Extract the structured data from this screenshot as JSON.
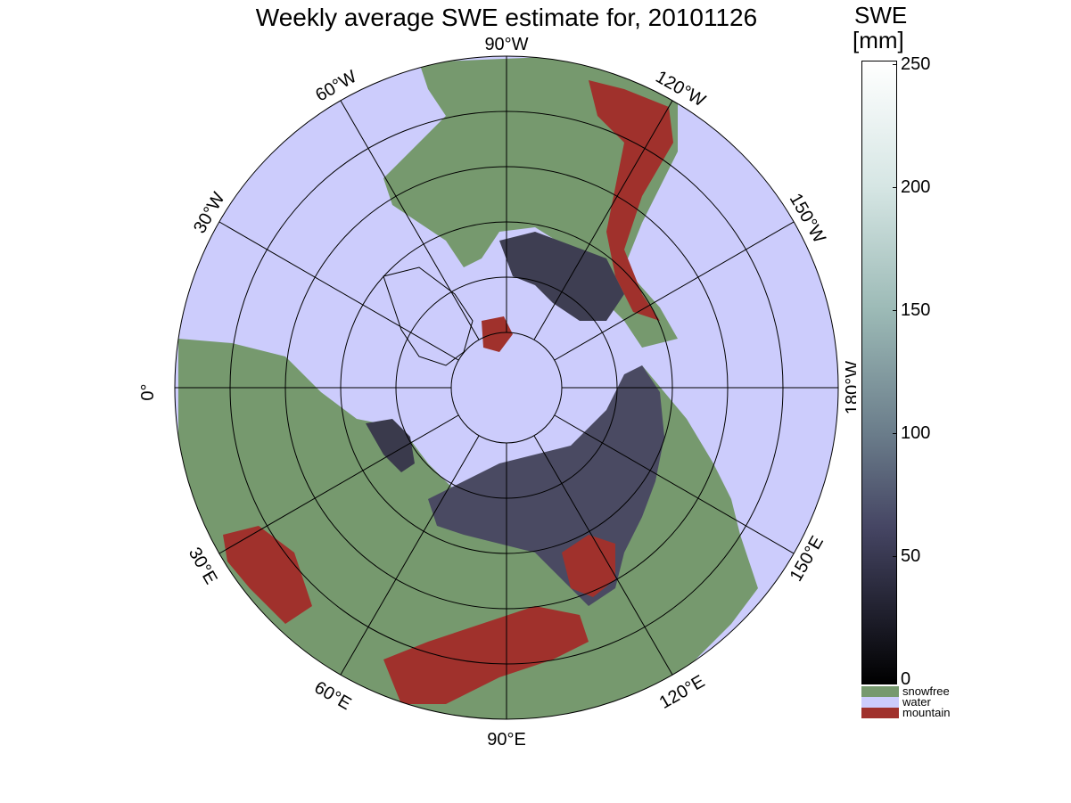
{
  "title": "Weekly average SWE estimate for, 20101126",
  "colorbar": {
    "title_line1": "SWE",
    "title_line2": "[mm]",
    "ticks": [
      "0",
      "50",
      "100",
      "150",
      "200",
      "250"
    ],
    "range": [
      0,
      250
    ]
  },
  "legend": [
    {
      "label": "snowfree",
      "color": "#76996e"
    },
    {
      "label": "water",
      "color": "#ccccfc"
    },
    {
      "label": "mountain",
      "color": "#a0312c"
    }
  ],
  "longitude_labels": {
    "lon_90W": "90°W",
    "lon_120W": "120°W",
    "lon_150W": "150°W",
    "lon_180W": "180°W",
    "lon_150E": "150°E",
    "lon_120E": "120°E",
    "lon_90E": "90°E",
    "lon_60E": "60°E",
    "lon_30E": "30°E",
    "lon_0": "0°",
    "lon_30W": "30°W",
    "lon_60W": "60°W"
  },
  "colors": {
    "ocean": "#ccccfc",
    "land_snowfree": "#76996e",
    "mountain": "#a0312c",
    "snow_deep": "#4a4a62",
    "snow_shallow": "#2b2b38"
  }
}
